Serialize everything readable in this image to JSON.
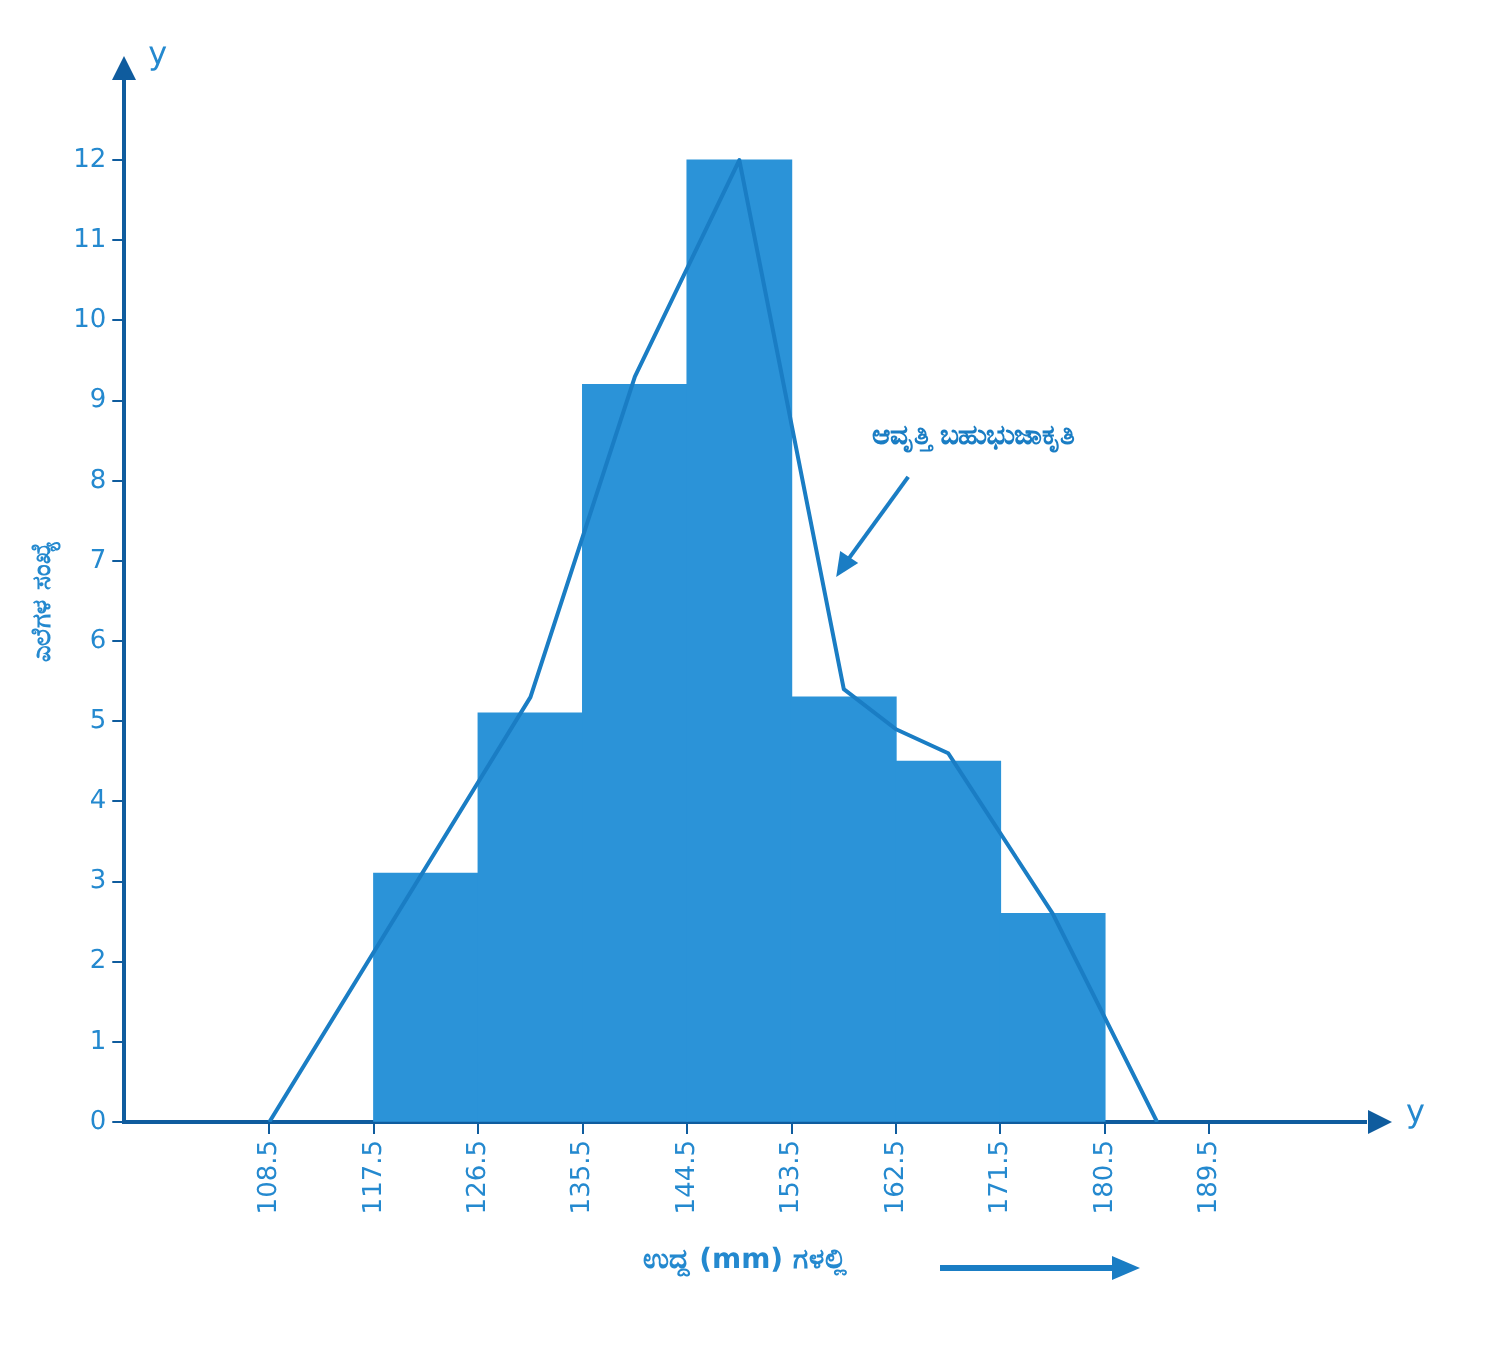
{
  "chart_data": {
    "type": "histogram",
    "xlabel": "ಉದ್ದ (mm) ಗಳಲ್ಲಿ",
    "ylabel": "ಎಲೆಗಳ ಸಂಖ್ಯೆ",
    "series": [
      {
        "type": "histogram",
        "color": "#2b93d8",
        "bins": [
          117.5,
          126.5,
          135.5,
          144.5,
          153.5,
          162.5,
          171.5,
          180.5
        ],
        "values": [
          3.1,
          5.1,
          9.2,
          12,
          5.3,
          4.5,
          2.6
        ]
      },
      {
        "type": "line",
        "color": "#1a7dc4",
        "x": [
          108.5,
          131,
          140,
          149,
          158,
          162.5,
          167,
          176,
          185
        ],
        "values": [
          0,
          5.3,
          9.3,
          12,
          5.4,
          4.9,
          4.6,
          2.6,
          0
        ]
      }
    ],
    "xlim": [
      96,
      203
    ],
    "xticks": [
      108.5,
      117.5,
      126.5,
      135.5,
      144.5,
      153.5,
      162.5,
      171.5,
      180.5,
      189.5
    ],
    "ylim": [
      0,
      13
    ],
    "yticks": [
      0,
      1,
      2,
      3,
      4,
      5,
      6,
      7,
      8,
      9,
      10,
      11,
      12
    ],
    "grid": false,
    "legend": false,
    "marker": "none",
    "line_style": "solid",
    "annotations": [
      "y",
      "y",
      {
        "text": "ಆವೃತ್ತಿ ಬಹುಭುಜಾಕೃತಿ",
        "x": 157,
        "y": 6.8
      }
    ]
  }
}
